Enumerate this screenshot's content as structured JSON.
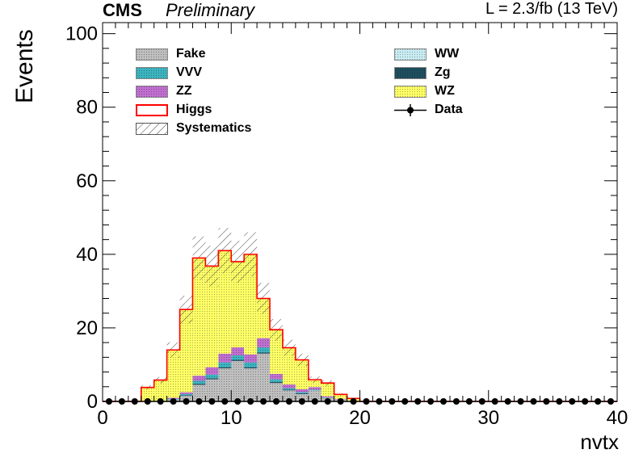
{
  "header": {
    "experiment": "CMS",
    "status": "Preliminary",
    "lumi": "L = 2.3/fb (13 TeV)"
  },
  "chart_data": {
    "type": "bar",
    "stacked": true,
    "xlabel": "nvtx",
    "ylabel": "Events",
    "xlim": [
      0,
      40
    ],
    "ylim": [
      0,
      103
    ],
    "x_ticks": [
      0,
      10,
      20,
      30,
      40
    ],
    "y_ticks": [
      0,
      20,
      40,
      60,
      80,
      100
    ],
    "bin_edges": [
      0,
      1,
      2,
      3,
      4,
      5,
      6,
      7,
      8,
      9,
      10,
      11,
      12,
      13,
      14,
      15,
      16,
      17,
      18,
      19,
      20,
      21,
      22,
      23,
      24,
      25,
      26,
      27,
      28,
      29,
      30,
      31,
      32,
      33,
      34,
      35,
      36,
      37,
      38,
      39,
      40
    ],
    "series": [
      {
        "name": "Fake",
        "color": "#bfbfbf",
        "values": [
          0,
          0,
          0,
          0,
          0,
          0.5,
          1.5,
          4.5,
          6,
          9,
          11,
          9,
          13,
          5,
          3,
          2,
          3,
          1,
          0.5,
          0,
          0,
          0,
          0,
          0,
          0,
          0,
          0,
          0,
          0,
          0,
          0,
          0,
          0,
          0,
          0,
          0,
          0,
          0,
          0,
          0
        ]
      },
      {
        "name": "Zg",
        "color": "#1f4f5f",
        "values": [
          0,
          0,
          0,
          0,
          0,
          0,
          0.2,
          0.3,
          0.3,
          0.3,
          0.3,
          0.3,
          0.3,
          0.3,
          0.2,
          0.2,
          0,
          0,
          0,
          0,
          0,
          0,
          0,
          0,
          0,
          0,
          0,
          0,
          0,
          0,
          0,
          0,
          0,
          0,
          0,
          0,
          0,
          0,
          0,
          0
        ]
      },
      {
        "name": "VVV",
        "color": "#3cb4c0",
        "values": [
          0,
          0,
          0,
          0,
          0,
          0.2,
          0.3,
          0.8,
          1,
          1.3,
          1.2,
          1.3,
          1.4,
          0.7,
          0.4,
          0.3,
          0.2,
          0.1,
          0,
          0,
          0,
          0,
          0,
          0,
          0,
          0,
          0,
          0,
          0,
          0,
          0,
          0,
          0,
          0,
          0,
          0,
          0,
          0,
          0,
          0
        ]
      },
      {
        "name": "ZZ",
        "color": "#c070d0",
        "values": [
          0,
          0,
          0,
          0,
          0.1,
          0.3,
          0.5,
          1.4,
          2,
          2.4,
          2.2,
          2.2,
          2.5,
          1.5,
          1,
          0.8,
          0.7,
          0.3,
          0.2,
          0.1,
          0,
          0,
          0,
          0,
          0,
          0,
          0,
          0,
          0,
          0,
          0,
          0,
          0,
          0,
          0,
          0,
          0,
          0,
          0,
          0
        ]
      },
      {
        "name": "WW",
        "color": "#c8ecf2",
        "values": [
          0,
          0,
          0,
          0,
          0,
          0,
          0,
          0,
          0,
          0,
          0,
          0,
          0,
          0,
          0,
          0,
          0,
          0,
          0,
          0,
          0,
          0,
          0,
          0,
          0,
          0,
          0,
          0,
          0,
          0,
          0,
          0,
          0,
          0,
          0,
          0,
          0,
          0,
          0,
          0
        ]
      },
      {
        "name": "WZ",
        "color": "#ffff66",
        "values": [
          0,
          0,
          0,
          3.8,
          5.7,
          13,
          22.5,
          32,
          27.5,
          28,
          23.3,
          27.2,
          10.8,
          12,
          10,
          8,
          2,
          3.6,
          1.2,
          0.7,
          0,
          0,
          0,
          0,
          0,
          0,
          0,
          0,
          0,
          0,
          0,
          0,
          0,
          0,
          0,
          0,
          0,
          0,
          0,
          0
        ]
      },
      {
        "name": "Higgs",
        "color": "#ff0000",
        "values": [
          0,
          0,
          0,
          0,
          0,
          0,
          0,
          0,
          0,
          0,
          0,
          0,
          0,
          0,
          0,
          0,
          0,
          0,
          0,
          0,
          0,
          0,
          0,
          0,
          0,
          0,
          0,
          0,
          0,
          0,
          0,
          0,
          0,
          0,
          0,
          0,
          0,
          0,
          0,
          0
        ]
      }
    ],
    "systematics_rel": 0.15,
    "data": {
      "name": "Data",
      "x": [
        0.5,
        1.5,
        2.5,
        3.5,
        4.5,
        5.5,
        6.5,
        7.5,
        8.5,
        9.5,
        10.5,
        11.5,
        12.5,
        13.5,
        14.5,
        15.5,
        16.5,
        17.5,
        18.5,
        19.5,
        20.5,
        21.5,
        22.5,
        23.5,
        24.5,
        25.5,
        26.5,
        27.5,
        28.5,
        29.5,
        30.5,
        31.5,
        32.5,
        33.5,
        34.5,
        35.5,
        36.5,
        37.5,
        38.5,
        39.5
      ],
      "y": [
        0,
        0,
        0,
        0,
        0,
        0,
        0,
        0,
        0,
        0,
        0,
        0,
        0,
        0,
        0,
        0,
        0,
        0,
        0,
        0,
        0,
        0,
        0,
        0,
        0,
        0,
        0,
        0,
        0,
        0,
        0,
        0,
        0,
        0,
        0,
        0,
        0,
        0,
        0,
        0
      ]
    },
    "legend": {
      "placement": "top",
      "entries": [
        {
          "label": "Fake",
          "style": "fill",
          "color": "#bfbfbf"
        },
        {
          "label": "WW",
          "style": "fill",
          "color": "#c8ecf2"
        },
        {
          "label": "VVV",
          "style": "fill",
          "color": "#3cb4c0"
        },
        {
          "label": "Zg",
          "style": "fill",
          "color": "#1f4f5f"
        },
        {
          "label": "ZZ",
          "style": "fill",
          "color": "#c070d0"
        },
        {
          "label": "WZ",
          "style": "fill",
          "color": "#ffff66"
        },
        {
          "label": "Higgs",
          "style": "line-box",
          "color": "#ff0000"
        },
        {
          "label": "Data",
          "style": "marker",
          "color": "#000000"
        },
        {
          "label": "Systematics",
          "style": "hatch",
          "color": "#555555"
        }
      ]
    },
    "grid": false
  }
}
